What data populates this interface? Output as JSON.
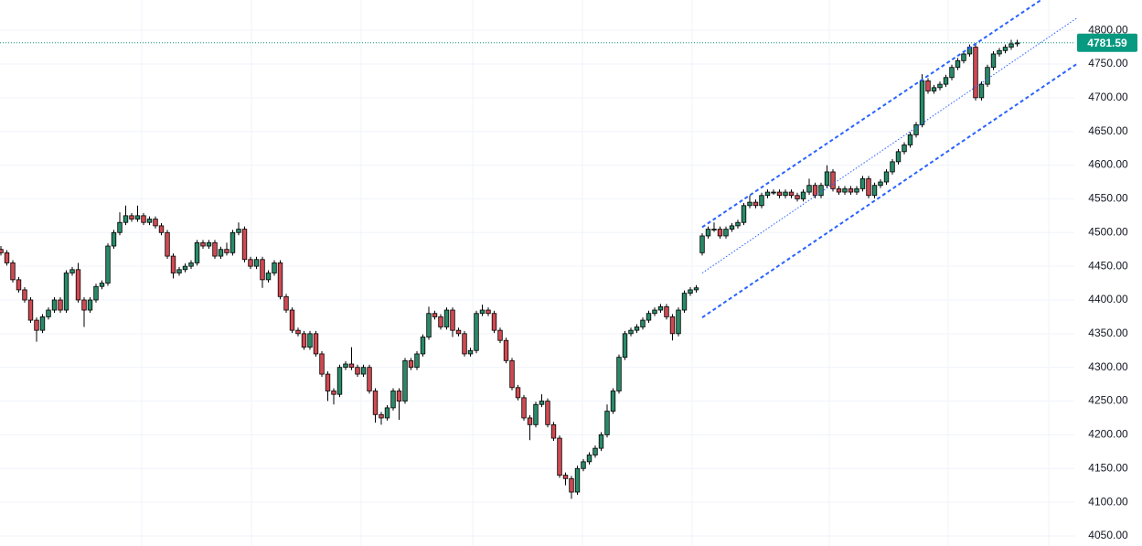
{
  "chart_data": {
    "type": "candlestick",
    "ylim": [
      4035,
      4845
    ],
    "yticks": [
      {
        "value": 4050,
        "label": "4050.00"
      },
      {
        "value": 4100,
        "label": "4100.00"
      },
      {
        "value": 4150,
        "label": "4150.00"
      },
      {
        "value": 4200,
        "label": "4200.00"
      },
      {
        "value": 4250,
        "label": "4250.00"
      },
      {
        "value": 4300,
        "label": "4300.00"
      },
      {
        "value": 4350,
        "label": "4350.00"
      },
      {
        "value": 4400,
        "label": "4400.00"
      },
      {
        "value": 4450,
        "label": "4450.00"
      },
      {
        "value": 4500,
        "label": "4500.00"
      },
      {
        "value": 4550,
        "label": "4550.00"
      },
      {
        "value": 4600,
        "label": "4600.00"
      },
      {
        "value": 4650,
        "label": "4650.00"
      },
      {
        "value": 4700,
        "label": "4700.00"
      },
      {
        "value": 4750,
        "label": "4750.00"
      },
      {
        "value": 4800,
        "label": "4800.00"
      }
    ],
    "grid": true,
    "up_color": "#2a8a68",
    "down_color": "#cf4a52",
    "last_price": 4781.59,
    "last_price_color": "#089981",
    "channel_color": "#2962ff",
    "channel": [
      {
        "style": "dashed",
        "points": [
          [
            118,
            4508
          ],
          [
            175,
            4845
          ]
        ]
      },
      {
        "style": "dotted",
        "points": [
          [
            118,
            4440
          ],
          [
            181,
            4818
          ]
        ]
      },
      {
        "style": "dashed",
        "points": [
          [
            118,
            4374
          ],
          [
            181,
            4750
          ]
        ]
      }
    ],
    "open": [
      4475,
      4470,
      4455,
      4430,
      4415,
      4400,
      4370,
      4355,
      4375,
      4385,
      4400,
      4385,
      4440,
      4445,
      4400,
      4385,
      4400,
      4420,
      4425,
      4480,
      4500,
      4515,
      4525,
      4520,
      4525,
      4515,
      4520,
      4510,
      4500,
      4465,
      4440,
      4445,
      4450,
      4455,
      4485,
      4480,
      4485,
      4465,
      4475,
      4470,
      4500,
      4505,
      4460,
      4450,
      4460,
      4430,
      4440,
      4455,
      4405,
      4385,
      4355,
      4350,
      4330,
      4350,
      4320,
      4290,
      4265,
      4260,
      4300,
      4305,
      4300,
      4290,
      4300,
      4265,
      4230,
      4225,
      4240,
      4265,
      4250,
      4310,
      4300,
      4320,
      4345,
      4380,
      4375,
      4360,
      4385,
      4355,
      4350,
      4320,
      4325,
      4380,
      4385,
      4380,
      4355,
      4340,
      4310,
      4270,
      4255,
      4225,
      4215,
      4245,
      4250,
      4215,
      4195,
      4140,
      4135,
      4115,
      4150,
      4160,
      4170,
      4180,
      4200,
      4235,
      4265,
      4315,
      4350,
      4355,
      4360,
      4370,
      4380,
      4385,
      4390,
      4375,
      4350,
      4385,
      4410,
      4415,
      4470,
      4495,
      4505,
      4505,
      4495,
      4505,
      4510,
      4515,
      4540,
      4545,
      4540,
      4555,
      4560,
      4560,
      4555,
      4560,
      4555,
      4550,
      4560,
      4570,
      4555,
      4570,
      4590,
      4565,
      4560,
      4565,
      4560,
      4565,
      4580,
      4555,
      4570,
      4575,
      4590,
      4605,
      4620,
      4630,
      4645,
      4660,
      4725,
      4710,
      4715,
      4720,
      4730,
      4745,
      4755,
      4765,
      4775,
      4700,
      4720,
      4745,
      4765,
      4770,
      4775,
      4780
    ],
    "high": [
      4480,
      4474,
      4459,
      4434,
      4419,
      4404,
      4374,
      4379,
      4389,
      4404,
      4404,
      4444,
      4449,
      4455,
      4404,
      4404,
      4424,
      4429,
      4484,
      4504,
      4530,
      4540,
      4529,
      4540,
      4529,
      4524,
      4524,
      4514,
      4504,
      4469,
      4449,
      4454,
      4459,
      4489,
      4489,
      4489,
      4489,
      4479,
      4485,
      4504,
      4515,
      4509,
      4464,
      4464,
      4464,
      4444,
      4459,
      4459,
      4409,
      4389,
      4359,
      4354,
      4354,
      4354,
      4324,
      4294,
      4269,
      4304,
      4309,
      4330,
      4304,
      4304,
      4304,
      4269,
      4234,
      4244,
      4269,
      4269,
      4314,
      4314,
      4324,
      4349,
      4390,
      4384,
      4379,
      4389,
      4389,
      4359,
      4354,
      4329,
      4384,
      4393,
      4389,
      4384,
      4359,
      4344,
      4314,
      4274,
      4259,
      4229,
      4249,
      4260,
      4254,
      4219,
      4199,
      4144,
      4139,
      4154,
      4164,
      4174,
      4184,
      4204,
      4245,
      4269,
      4319,
      4354,
      4359,
      4364,
      4374,
      4384,
      4389,
      4394,
      4394,
      4379,
      4389,
      4414,
      4419,
      4422,
      4499,
      4509,
      4515,
      4509,
      4509,
      4514,
      4519,
      4544,
      4555,
      4549,
      4559,
      4564,
      4564,
      4564,
      4564,
      4564,
      4559,
      4564,
      4580,
      4574,
      4574,
      4600,
      4594,
      4569,
      4569,
      4569,
      4569,
      4584,
      4584,
      4574,
      4579,
      4594,
      4609,
      4624,
      4634,
      4649,
      4664,
      4735,
      4729,
      4719,
      4724,
      4734,
      4749,
      4759,
      4769,
      4779,
      4779,
      4724,
      4749,
      4769,
      4774,
      4779,
      4786,
      4786
    ],
    "low": [
      4466,
      4451,
      4426,
      4411,
      4396,
      4366,
      4338,
      4351,
      4371,
      4381,
      4381,
      4381,
      4436,
      4396,
      4360,
      4381,
      4396,
      4416,
      4421,
      4476,
      4496,
      4511,
      4516,
      4516,
      4511,
      4511,
      4506,
      4496,
      4461,
      4432,
      4436,
      4441,
      4446,
      4451,
      4476,
      4476,
      4461,
      4461,
      4466,
      4466,
      4496,
      4456,
      4446,
      4446,
      4418,
      4426,
      4436,
      4401,
      4381,
      4351,
      4346,
      4326,
      4326,
      4316,
      4286,
      4250,
      4245,
      4256,
      4296,
      4296,
      4286,
      4286,
      4261,
      4218,
      4215,
      4221,
      4236,
      4222,
      4246,
      4296,
      4296,
      4316,
      4341,
      4371,
      4356,
      4356,
      4345,
      4346,
      4316,
      4316,
      4321,
      4376,
      4376,
      4351,
      4336,
      4306,
      4266,
      4251,
      4221,
      4192,
      4211,
      4241,
      4211,
      4191,
      4136,
      4125,
      4105,
      4111,
      4146,
      4156,
      4166,
      4176,
      4196,
      4231,
      4261,
      4311,
      4346,
      4351,
      4356,
      4366,
      4376,
      4381,
      4371,
      4340,
      4346,
      4381,
      4406,
      4411,
      4466,
      4491,
      4501,
      4491,
      4491,
      4501,
      4506,
      4511,
      4536,
      4536,
      4536,
      4551,
      4556,
      4551,
      4551,
      4551,
      4546,
      4546,
      4556,
      4551,
      4551,
      4566,
      4561,
      4556,
      4556,
      4556,
      4556,
      4561,
      4551,
      4551,
      4566,
      4571,
      4586,
      4601,
      4616,
      4626,
      4641,
      4656,
      4706,
      4706,
      4711,
      4716,
      4726,
      4741,
      4751,
      4761,
      4696,
      4696,
      4716,
      4741,
      4761,
      4766,
      4771,
      4776
    ],
    "close": [
      4470,
      4455,
      4430,
      4415,
      4400,
      4370,
      4355,
      4375,
      4385,
      4400,
      4385,
      4440,
      4445,
      4400,
      4385,
      4400,
      4420,
      4425,
      4480,
      4500,
      4515,
      4525,
      4520,
      4525,
      4515,
      4520,
      4510,
      4500,
      4465,
      4440,
      4445,
      4450,
      4455,
      4485,
      4480,
      4485,
      4465,
      4475,
      4470,
      4500,
      4505,
      4460,
      4450,
      4460,
      4430,
      4440,
      4455,
      4405,
      4385,
      4355,
      4350,
      4330,
      4350,
      4320,
      4290,
      4265,
      4260,
      4300,
      4305,
      4300,
      4290,
      4300,
      4265,
      4230,
      4225,
      4240,
      4265,
      4250,
      4310,
      4300,
      4320,
      4345,
      4380,
      4375,
      4360,
      4385,
      4355,
      4350,
      4320,
      4325,
      4380,
      4385,
      4380,
      4355,
      4340,
      4310,
      4270,
      4255,
      4225,
      4215,
      4245,
      4250,
      4215,
      4195,
      4140,
      4135,
      4115,
      4150,
      4160,
      4170,
      4180,
      4200,
      4235,
      4265,
      4315,
      4350,
      4355,
      4360,
      4370,
      4380,
      4385,
      4390,
      4375,
      4350,
      4385,
      4410,
      4415,
      4418,
      4495,
      4505,
      4505,
      4495,
      4505,
      4510,
      4515,
      4540,
      4545,
      4540,
      4555,
      4560,
      4560,
      4555,
      4560,
      4555,
      4550,
      4560,
      4570,
      4555,
      4570,
      4590,
      4565,
      4560,
      4565,
      4560,
      4565,
      4580,
      4555,
      4570,
      4575,
      4590,
      4605,
      4620,
      4630,
      4645,
      4660,
      4725,
      4710,
      4715,
      4720,
      4730,
      4745,
      4755,
      4765,
      4775,
      4700,
      4720,
      4745,
      4765,
      4770,
      4775,
      4780,
      4781.59
    ]
  }
}
